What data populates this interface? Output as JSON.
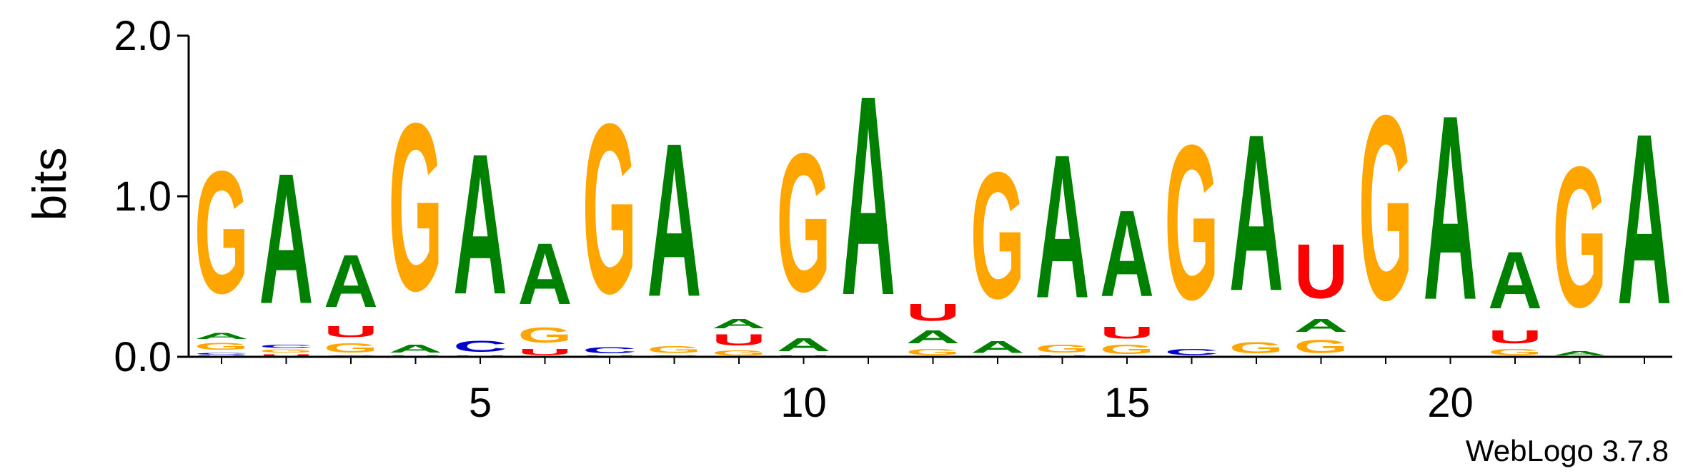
{
  "chart_data": {
    "type": "sequence-logo",
    "title": "",
    "xlabel": "",
    "ylabel": "bits",
    "ylim": [
      0,
      2
    ],
    "y_ticks": [
      "0.0",
      "1.0",
      "2.0"
    ],
    "x_ticks": [
      "5",
      "10",
      "15",
      "20"
    ],
    "x_tick_positions": [
      5,
      10,
      15,
      20
    ],
    "positions": 23,
    "colors": {
      "A": "#008000",
      "C": "#0000cc",
      "G": "#ffa500",
      "U": "#ff0000"
    },
    "columns": [
      {
        "position": 1,
        "letters": [
          [
            "U",
            0.01
          ],
          [
            "C",
            0.02
          ],
          [
            "G",
            0.07
          ],
          [
            "A",
            0.06
          ],
          [
            "G",
            1.22
          ]
        ]
      },
      {
        "position": 2,
        "letters": [
          [
            "U",
            0.02
          ],
          [
            "G",
            0.03
          ],
          [
            "C",
            0.03
          ],
          [
            "A",
            1.3
          ]
        ]
      },
      {
        "position": 3,
        "letters": [
          [
            "C",
            0.01
          ],
          [
            "G",
            0.09
          ],
          [
            "U",
            0.11
          ],
          [
            "A",
            0.52
          ]
        ]
      },
      {
        "position": 4,
        "letters": [
          [
            "U",
            0.01
          ],
          [
            "A",
            0.08
          ],
          [
            "G",
            1.67
          ]
        ]
      },
      {
        "position": 5,
        "letters": [
          [
            "U",
            0.01
          ],
          [
            "C",
            0.11
          ],
          [
            "A",
            1.4
          ]
        ]
      },
      {
        "position": 6,
        "letters": [
          [
            "U",
            0.06
          ],
          [
            "G",
            0.15
          ],
          [
            "A",
            0.61
          ]
        ]
      },
      {
        "position": 7,
        "letters": [
          [
            "U",
            0.01
          ],
          [
            "C",
            0.06
          ],
          [
            "G",
            1.69
          ]
        ]
      },
      {
        "position": 8,
        "letters": [
          [
            "C",
            0.01
          ],
          [
            "G",
            0.07
          ],
          [
            "A",
            1.53
          ]
        ]
      },
      {
        "position": 9,
        "letters": [
          [
            "G",
            0.05
          ],
          [
            "U",
            0.11
          ],
          [
            "A",
            0.09
          ]
        ]
      },
      {
        "position": 10,
        "letters": [
          [
            "U",
            0.01
          ],
          [
            "A",
            0.13
          ],
          [
            "G",
            1.38
          ]
        ]
      },
      {
        "position": 11,
        "letters": [
          [
            "A",
            1.99
          ]
        ]
      },
      {
        "position": 12,
        "letters": [
          [
            "G",
            0.06
          ],
          [
            "A",
            0.13
          ],
          [
            "U",
            0.17
          ]
        ]
      },
      {
        "position": 13,
        "letters": [
          [
            "A",
            0.12
          ],
          [
            "G",
            1.26
          ]
        ]
      },
      {
        "position": 14,
        "letters": [
          [
            "U",
            0.01
          ],
          [
            "G",
            0.08
          ],
          [
            "A",
            1.43
          ]
        ]
      },
      {
        "position": 15,
        "letters": [
          [
            "G",
            0.09
          ],
          [
            "U",
            0.12
          ],
          [
            "A",
            0.86
          ]
        ]
      },
      {
        "position": 16,
        "letters": [
          [
            "C",
            0.06
          ],
          [
            "G",
            1.54
          ]
        ]
      },
      {
        "position": 17,
        "letters": [
          [
            "G",
            0.11
          ],
          [
            "A",
            1.56
          ]
        ]
      },
      {
        "position": 18,
        "letters": [
          [
            "G",
            0.13
          ],
          [
            "A",
            0.13
          ],
          [
            "U",
            0.54
          ]
        ]
      },
      {
        "position": 19,
        "letters": [
          [
            "G",
            1.84
          ]
        ]
      },
      {
        "position": 20,
        "letters": [
          [
            "A",
            1.84
          ]
        ]
      },
      {
        "position": 21,
        "letters": [
          [
            "G",
            0.06
          ],
          [
            "U",
            0.13
          ],
          [
            "A",
            0.57
          ]
        ]
      },
      {
        "position": 22,
        "letters": [
          [
            "A",
            0.04
          ],
          [
            "G",
            1.4
          ]
        ]
      },
      {
        "position": 23,
        "letters": [
          [
            "A",
            1.7
          ]
        ]
      }
    ]
  },
  "footer": {
    "credit": "WebLogo 3.7.8"
  }
}
